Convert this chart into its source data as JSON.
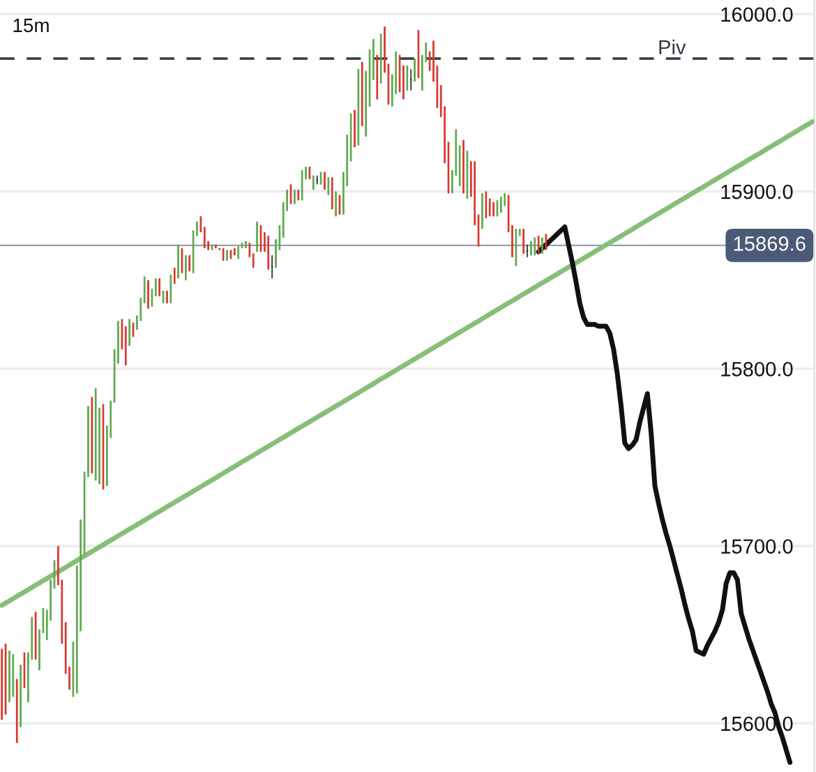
{
  "chart_data": {
    "type": "candlestick",
    "categories": [
      null,
      null,
      null,
      null,
      null,
      null,
      null,
      null,
      null,
      null,
      null,
      null,
      null,
      null,
      null,
      null,
      null,
      null,
      null,
      null,
      null,
      null,
      null,
      null,
      null,
      null,
      null,
      null,
      null,
      null,
      null,
      null,
      null,
      null,
      null,
      null,
      null,
      null,
      null,
      null,
      null,
      null,
      null,
      null,
      null,
      null,
      null,
      null,
      null,
      null,
      null,
      null,
      null,
      null,
      null,
      null,
      null,
      null,
      null,
      null,
      null,
      null,
      null,
      null,
      null,
      null,
      null,
      null,
      null,
      null,
      null,
      null,
      null,
      null,
      null,
      null,
      null,
      null,
      null,
      null,
      null,
      null,
      null,
      null,
      null,
      null,
      null,
      null,
      null,
      null,
      null,
      null,
      null,
      null,
      null,
      null,
      null,
      null,
      null,
      null,
      null,
      null,
      null,
      null,
      null,
      null,
      null,
      null,
      null,
      null,
      null,
      null,
      null,
      null,
      null,
      null,
      null,
      null,
      null,
      null,
      null,
      null,
      null,
      null,
      null,
      null,
      null,
      null,
      null,
      null,
      null,
      null,
      null,
      null,
      null,
      null,
      null,
      null,
      null,
      null,
      null,
      null,
      null,
      null,
      null,
      null,
      null,
      null,
      null,
      null,
      null,
      null,
      null,
      null,
      null,
      null,
      null,
      null,
      null,
      null,
      null,
      null,
      null,
      null,
      null,
      null,
      null,
      null,
      null,
      null,
      null,
      null,
      null,
      null,
      null,
      null,
      null,
      null,
      null,
      null,
      null,
      null,
      null,
      null,
      null,
      null,
      null,
      null,
      null,
      null,
      null,
      null,
      null,
      null,
      null,
      null,
      null,
      null,
      null,
      null,
      null,
      null,
      null,
      null,
      null,
      null,
      null,
      null,
      null,
      null,
      null,
      null,
      null,
      null,
      null,
      null,
      null
    ],
    "ohlc": [
      [
        15642,
        15642,
        15602,
        15602
      ],
      [
        15645,
        15645,
        15605,
        15605
      ],
      [
        15612,
        15641,
        15612,
        15641
      ],
      [
        15615,
        15639,
        15615,
        15639
      ],
      [
        15625,
        15625,
        15589,
        15589
      ],
      [
        15598,
        15633,
        15598,
        15633
      ],
      [
        15640,
        15640,
        15620,
        15620
      ],
      [
        15612,
        15640,
        15612,
        15640
      ],
      [
        15636,
        15660,
        15636,
        15660
      ],
      [
        15663,
        15663,
        15636,
        15636
      ],
      [
        15630,
        15653,
        15630,
        15653
      ],
      [
        15651,
        15665,
        15651,
        15665
      ],
      [
        15647,
        15664,
        15647,
        15664
      ],
      [
        15658,
        15681,
        15658,
        15681
      ],
      [
        15676,
        15692,
        15676,
        15692
      ],
      [
        15700,
        15700,
        15678,
        15678
      ],
      [
        15681,
        15681,
        15645,
        15645
      ],
      [
        15657,
        15657,
        15628,
        15628
      ],
      [
        15632,
        15632,
        15619,
        15619
      ],
      [
        15615,
        15646,
        15615,
        15646
      ],
      [
        15617,
        15689,
        15617,
        15689
      ],
      [
        15652,
        15715,
        15652,
        15715
      ],
      [
        15695,
        15742,
        15695,
        15742
      ],
      [
        15739,
        15779,
        15739,
        15779
      ],
      [
        15784,
        15784,
        15741,
        15741
      ],
      [
        15737,
        15789,
        15737,
        15789
      ],
      [
        15735,
        15778,
        15735,
        15778
      ],
      [
        15780,
        15780,
        15732,
        15732
      ],
      [
        15734,
        15768,
        15734,
        15768
      ],
      [
        15761,
        15782,
        15761,
        15782
      ],
      [
        15781,
        15811,
        15781,
        15811
      ],
      [
        15803,
        15827,
        15803,
        15827
      ],
      [
        15828,
        15828,
        15811,
        15811
      ],
      [
        15824,
        15824,
        15802,
        15802
      ],
      [
        15813,
        15828,
        15813,
        15828
      ],
      [
        15826,
        15826,
        15818,
        15818
      ],
      [
        15822,
        15830,
        15822,
        15830
      ],
      [
        15827,
        15840,
        15827,
        15840
      ],
      [
        15837,
        15852,
        15837,
        15852
      ],
      [
        15850,
        15850,
        15834,
        15834
      ],
      [
        15835,
        15845,
        15835,
        15845
      ],
      [
        15841,
        15851,
        15841,
        15851
      ],
      [
        15851,
        15851,
        15841,
        15841
      ],
      [
        15837,
        15844,
        15837,
        15844
      ],
      [
        15844,
        15844,
        15837,
        15837
      ],
      [
        15837,
        15853,
        15837,
        15853
      ],
      [
        15857,
        15857,
        15848,
        15848
      ],
      [
        15851,
        15870,
        15851,
        15870
      ],
      [
        15868,
        15868,
        15854,
        15854
      ],
      [
        15850,
        15864,
        15850,
        15864
      ],
      [
        15864,
        15864,
        15855,
        15855
      ],
      [
        15854,
        15878,
        15854,
        15878
      ],
      [
        15875,
        15883,
        15875,
        15883
      ],
      [
        15886,
        15886,
        15877,
        15877
      ],
      [
        15880,
        15880,
        15868,
        15868
      ],
      [
        15872,
        15872,
        15867,
        15867
      ],
      [
        15867,
        15870,
        15867,
        15870
      ],
      [
        15870,
        15870,
        15868,
        15868
      ],
      [
        15868,
        15868,
        15867,
        15867
      ],
      [
        15868,
        15868,
        15861,
        15861
      ],
      [
        15861,
        15867,
        15861,
        15867
      ],
      [
        15867,
        15867,
        15862,
        15862
      ],
      [
        15868,
        15868,
        15864,
        15864
      ],
      [
        15862,
        15869,
        15862,
        15869
      ],
      [
        15868,
        15871,
        15868,
        15871
      ],
      [
        15868,
        15872,
        15868,
        15872
      ],
      [
        15871,
        15871,
        15863,
        15863
      ],
      [
        15865,
        15865,
        15857,
        15857
      ],
      [
        15866,
        15883,
        15866,
        15883
      ],
      [
        15881,
        15881,
        15866,
        15866
      ],
      [
        15877,
        15877,
        15866,
        15866
      ],
      [
        15875,
        15875,
        15856,
        15856
      ],
      [
        15857.5,
        15864,
        15851,
        15857.5
      ],
      [
        15857,
        15873,
        15857,
        15873
      ],
      [
        15867,
        15881,
        15867,
        15881
      ],
      [
        15874,
        15894,
        15874,
        15894
      ],
      [
        15889,
        15901,
        15889,
        15901
      ],
      [
        15904,
        15904,
        15893,
        15893
      ],
      [
        15893,
        15901,
        15893,
        15901
      ],
      [
        15901,
        15901,
        15895,
        15895
      ],
      [
        15895,
        15912,
        15895,
        15912
      ],
      [
        15907,
        15914,
        15907,
        15914
      ],
      [
        15914,
        15914,
        15907,
        15907
      ],
      [
        15901,
        15909,
        15901,
        15909
      ],
      [
        15906.5,
        15909,
        15904,
        15906.5
      ],
      [
        15904,
        15911,
        15904,
        15911
      ],
      [
        15911,
        15911,
        15901,
        15901
      ],
      [
        15898,
        15908,
        15898,
        15908
      ],
      [
        15908,
        15908,
        15890,
        15890
      ],
      [
        15886,
        15900,
        15886,
        15900
      ],
      [
        15898,
        15898,
        15887,
        15887
      ],
      [
        15887,
        15911,
        15887,
        15911
      ],
      [
        15903,
        15932,
        15903,
        15932
      ],
      [
        15917,
        15944,
        15917,
        15944
      ],
      [
        15946,
        15946,
        15925,
        15925
      ],
      [
        15926,
        15969,
        15926,
        15969
      ],
      [
        15973,
        15973,
        15937,
        15937
      ],
      [
        15931,
        15968,
        15931,
        15968
      ],
      [
        15948,
        15980,
        15948,
        15980
      ],
      [
        15963,
        15986,
        15963,
        15986
      ],
      [
        15977,
        15977,
        15952,
        15952
      ],
      [
        15961,
        15989,
        15961,
        15989
      ],
      [
        15993,
        15993,
        15967,
        15967
      ],
      [
        15972,
        15972,
        15949,
        15949
      ],
      [
        15948,
        15966,
        15948,
        15966
      ],
      [
        15955,
        15979,
        15955,
        15979
      ],
      [
        15977,
        15977,
        15956,
        15956
      ],
      [
        15971,
        15971,
        15952,
        15952
      ],
      [
        15957,
        15971,
        15957,
        15971
      ],
      [
        15963,
        15969,
        15957,
        15963
      ],
      [
        15962,
        15975,
        15962,
        15975
      ],
      [
        15991,
        15991,
        15964,
        15964
      ],
      [
        15957,
        15977,
        15957,
        15977
      ],
      [
        15973,
        15984,
        15973,
        15984
      ],
      [
        15979,
        15979,
        15968,
        15968
      ],
      [
        15985,
        15985,
        15962,
        15962
      ],
      [
        15971,
        15971,
        15947,
        15947
      ],
      [
        15960,
        15960,
        15942,
        15942
      ],
      [
        15948,
        15948,
        15916,
        15916
      ],
      [
        15928,
        15928,
        15899,
        15899
      ],
      [
        15899,
        15912,
        15899,
        15912
      ],
      [
        15909,
        15935,
        15909,
        15935
      ],
      [
        15903,
        15926,
        15903,
        15926
      ],
      [
        15929,
        15929,
        15899,
        15899
      ],
      [
        15896,
        15923,
        15896,
        15923
      ],
      [
        15917,
        15917,
        15897,
        15897
      ],
      [
        15917,
        15917,
        15881,
        15881
      ],
      [
        15887,
        15887,
        15869,
        15869
      ],
      [
        15879,
        15899,
        15879,
        15899
      ],
      [
        15900,
        15900,
        15885,
        15885
      ],
      [
        15896,
        15896,
        15886,
        15886
      ],
      [
        15894,
        15894,
        15886,
        15886
      ],
      [
        15886,
        15895,
        15886,
        15895
      ],
      [
        15888,
        15897,
        15888,
        15897
      ],
      [
        15892,
        15899,
        15892,
        15899
      ],
      [
        15898,
        15898,
        15877,
        15877
      ],
      [
        15881,
        15881,
        15863,
        15863
      ],
      [
        15858,
        15879,
        15858,
        15879
      ],
      [
        15875,
        15879,
        15875,
        15879
      ],
      [
        15879,
        15879,
        15865,
        15865
      ],
      [
        15866.5,
        15870,
        15863,
        15866.5
      ],
      [
        15864,
        15872,
        15864,
        15872
      ],
      [
        15864,
        15874,
        15864,
        15874
      ],
      [
        15875,
        15875,
        15865,
        15865
      ],
      [
        15865,
        15874,
        15865,
        15874
      ],
      [
        15876,
        15876,
        15867,
        15867
      ],
      null,
      null,
      null,
      null,
      null,
      null,
      null,
      null,
      null,
      null,
      null,
      null,
      null,
      null,
      null,
      null,
      null,
      null,
      null,
      null,
      null,
      null,
      null,
      null,
      null,
      null,
      null,
      null,
      null,
      null,
      null,
      null,
      null,
      null,
      null,
      null,
      null,
      null,
      null,
      null,
      null,
      null,
      null,
      null,
      null,
      null,
      null,
      null,
      null,
      null,
      null,
      null,
      null,
      null,
      null,
      null,
      null,
      null,
      null,
      null,
      null,
      null,
      null,
      null,
      null,
      null,
      null,
      null,
      null,
      null,
      null
    ],
    "colors": [
      "#d9372f",
      "#d9372f",
      "#5fa84f",
      "#5fa84f",
      "#d9372f",
      "#5fa84f",
      "#d9372f",
      "#5fa84f",
      "#5fa84f",
      "#d9372f",
      "#5fa84f",
      "#5fa84f",
      "#5fa84f",
      "#5fa84f",
      "#5fa84f",
      "#d9372f",
      "#d9372f",
      "#d9372f",
      "#d9372f",
      "#5fa84f",
      "#5fa84f",
      "#5fa84f",
      "#5fa84f",
      "#5fa84f",
      "#d9372f",
      "#5fa84f",
      "#5fa84f",
      "#d9372f",
      "#5fa84f",
      "#5fa84f",
      "#5fa84f",
      "#5fa84f",
      "#d9372f",
      "#d9372f",
      "#5fa84f",
      "#d9372f",
      "#5fa84f",
      "#5fa84f",
      "#5fa84f",
      "#d9372f",
      "#5fa84f",
      "#5fa84f",
      "#d9372f",
      "#5fa84f",
      "#d9372f",
      "#5fa84f",
      "#d9372f",
      "#5fa84f",
      "#d9372f",
      "#5fa84f",
      "#d9372f",
      "#5fa84f",
      "#5fa84f",
      "#d9372f",
      "#d9372f",
      "#d9372f",
      "#5fa84f",
      "#d9372f",
      "#d9372f",
      "#d9372f",
      "#5fa84f",
      "#d9372f",
      "#d9372f",
      "#5fa84f",
      "#5fa84f",
      "#5fa84f",
      "#d9372f",
      "#d9372f",
      "#5fa84f",
      "#d9372f",
      "#d9372f",
      "#d9372f",
      "#25272b",
      "#5fa84f",
      "#5fa84f",
      "#5fa84f",
      "#5fa84f",
      "#d9372f",
      "#5fa84f",
      "#d9372f",
      "#5fa84f",
      "#5fa84f",
      "#d9372f",
      "#5fa84f",
      "#25272b",
      "#5fa84f",
      "#d9372f",
      "#5fa84f",
      "#d9372f",
      "#5fa84f",
      "#d9372f",
      "#5fa84f",
      "#5fa84f",
      "#5fa84f",
      "#d9372f",
      "#5fa84f",
      "#d9372f",
      "#5fa84f",
      "#5fa84f",
      "#5fa84f",
      "#d9372f",
      "#5fa84f",
      "#d9372f",
      "#d9372f",
      "#5fa84f",
      "#5fa84f",
      "#d9372f",
      "#d9372f",
      "#5fa84f",
      "#25272b",
      "#5fa84f",
      "#d9372f",
      "#5fa84f",
      "#5fa84f",
      "#d9372f",
      "#d9372f",
      "#d9372f",
      "#d9372f",
      "#d9372f",
      "#d9372f",
      "#5fa84f",
      "#5fa84f",
      "#5fa84f",
      "#d9372f",
      "#5fa84f",
      "#d9372f",
      "#d9372f",
      "#d9372f",
      "#5fa84f",
      "#d9372f",
      "#d9372f",
      "#d9372f",
      "#5fa84f",
      "#5fa84f",
      "#5fa84f",
      "#d9372f",
      "#d9372f",
      "#5fa84f",
      "#5fa84f",
      "#d9372f",
      "#25272b",
      "#5fa84f",
      "#5fa84f",
      "#d9372f",
      "#5fa84f",
      "#d9372f",
      null,
      null,
      null,
      null,
      null,
      null,
      null,
      null,
      null,
      null,
      null,
      null,
      null,
      null,
      null,
      null,
      null,
      null,
      null,
      null,
      null,
      null,
      null,
      null,
      null,
      null,
      null,
      null,
      null,
      null,
      null,
      null,
      null,
      null,
      null,
      null,
      null,
      null,
      null,
      null,
      null,
      null,
      null,
      null,
      null,
      null,
      null,
      null,
      null,
      null,
      null,
      null,
      null,
      null,
      null,
      null,
      null,
      null,
      null,
      null,
      null,
      null,
      null,
      null,
      null,
      null,
      null,
      null,
      null,
      null,
      null
    ],
    "series": [
      {
        "type": "line",
        "color": "#85bf78",
        "values": [
          15666.6,
          15667.9,
          15669.1,
          15670.4,
          15671.7,
          15672.9,
          15674.2,
          15675.4,
          15676.7,
          15678.0,
          15679.2,
          15680.5,
          15681.7,
          15683.0,
          15684.3,
          15685.5,
          15686.8,
          15688.0,
          15689.3,
          15690.6,
          15691.9,
          15693.2,
          15694.4,
          15695.7,
          15697.0,
          15698.2,
          15699.5,
          15700.7,
          15702.0,
          15703.3,
          15704.5,
          15705.8,
          15707.0,
          15708.3,
          15709.6,
          15710.8,
          15712.1,
          15713.3,
          15714.6,
          15715.9,
          15717.1,
          15718.4,
          15719.6,
          15720.9,
          15722.2,
          15723.4,
          15724.7,
          15725.9,
          15727.2,
          15728.5,
          15729.7,
          15731.0,
          15732.2,
          15733.5,
          15734.8,
          15736.0,
          15737.3,
          15738.5,
          15739.8,
          15741.1,
          15742.4,
          15743.7,
          15744.9,
          15746.2,
          15747.5,
          15748.7,
          15750.0,
          15751.2,
          15752.5,
          15753.8,
          15755.0,
          15756.3,
          15757.5,
          15758.8,
          15760.1,
          15761.3,
          15762.6,
          15763.8,
          15765.1,
          15766.4,
          15767.6,
          15768.9,
          15770.1,
          15771.4,
          15772.7,
          15773.9,
          15775.2,
          15776.4,
          15777.7,
          15779.0,
          15780.2,
          15781.5,
          15782.7,
          15784.0,
          15785.3,
          15786.5,
          15787.8,
          15789.0,
          15790.3,
          15791.6,
          15792.9,
          15794.2,
          15795.4,
          15796.7,
          15798.0,
          15799.2,
          15800.5,
          15801.7,
          15803.0,
          15804.3,
          15805.5,
          15806.8,
          15808.0,
          15809.3,
          15810.6,
          15811.8,
          15813.1,
          15814.3,
          15815.6,
          15816.9,
          15818.1,
          15819.4,
          15820.6,
          15821.9,
          15823.2,
          15824.4,
          15825.7,
          15826.9,
          15828.2,
          15829.5,
          15830.8,
          15832.1,
          15833.3,
          15834.6,
          15835.9,
          15837.1,
          15838.4,
          15839.6,
          15840.9,
          15842.2,
          15843.4,
          15844.7,
          15845.9,
          15847.2,
          15848.5,
          15849.7,
          15851.0,
          15852.2,
          15853.5,
          15854.8,
          15856.0,
          15857.3,
          15858.5,
          15859.8,
          15861.1,
          15862.3,
          15863.6,
          15864.8,
          15866.1,
          15867.4,
          15868.6,
          15869.9,
          15871.1,
          15872.4,
          15873.7,
          15874.9,
          15876.2,
          15877.4,
          15878.7,
          15880.0,
          15881.3,
          15882.6,
          15883.8,
          15885.1,
          15886.4,
          15887.6,
          15888.9,
          15890.1,
          15891.4,
          15892.7,
          15893.9,
          15895.2,
          15896.4,
          15897.7,
          15899.0,
          15900.2,
          15901.5,
          15902.7,
          15904.0,
          15905.3,
          15906.5,
          15907.8,
          15909.0,
          15910.3,
          15911.6,
          15912.8,
          15914.1,
          15915.3,
          15916.6,
          15917.9,
          15919.1,
          15920.4,
          15921.6,
          15922.9,
          15924.2,
          15925.4,
          15926.7,
          15927.9,
          15929.2,
          15930.5,
          15931.8,
          15933.1,
          15934.3,
          15935.6,
          15936.9,
          15938.1,
          15939.4
        ]
      },
      {
        "type": "line",
        "color": "#111111",
        "values": [
          null,
          null,
          null,
          null,
          null,
          null,
          null,
          null,
          null,
          null,
          null,
          null,
          null,
          null,
          null,
          null,
          null,
          null,
          null,
          null,
          null,
          null,
          null,
          null,
          null,
          null,
          null,
          null,
          null,
          null,
          null,
          null,
          null,
          null,
          null,
          null,
          null,
          null,
          null,
          null,
          null,
          null,
          null,
          null,
          null,
          null,
          null,
          null,
          null,
          null,
          null,
          null,
          null,
          null,
          null,
          null,
          null,
          null,
          null,
          null,
          null,
          null,
          null,
          null,
          null,
          null,
          null,
          null,
          null,
          null,
          null,
          null,
          null,
          null,
          null,
          null,
          null,
          null,
          null,
          null,
          null,
          null,
          null,
          null,
          null,
          null,
          null,
          null,
          null,
          null,
          null,
          null,
          null,
          null,
          null,
          null,
          null,
          null,
          null,
          null,
          null,
          null,
          null,
          null,
          null,
          null,
          null,
          null,
          null,
          null,
          null,
          null,
          null,
          null,
          null,
          null,
          null,
          null,
          null,
          null,
          null,
          null,
          null,
          null,
          null,
          null,
          null,
          null,
          null,
          null,
          null,
          null,
          null,
          null,
          null,
          null,
          null,
          null,
          null,
          null,
          null,
          null,
          null,
          15866,
          15868,
          15870,
          15872,
          15874,
          15876,
          15878,
          15880,
          15870,
          15860,
          15849,
          15837,
          15829,
          15825,
          15825,
          15825,
          15824,
          15824,
          15824,
          15820,
          15811,
          15797,
          15779,
          15758,
          15755,
          15757,
          15760,
          15770,
          15778,
          15786,
          15764,
          15734,
          15724,
          15715,
          15707,
          15700,
          15692,
          15684,
          15676,
          15667,
          15659,
          15652,
          15641,
          15640,
          15639,
          15644,
          15648,
          15652,
          15657,
          15664,
          15679,
          15685,
          15685,
          15681,
          15662,
          15655,
          15648,
          15642,
          15636,
          15630,
          15624,
          15618,
          15611,
          15606,
          15598,
          15592,
          15585,
          15578,
          null,
          null,
          null,
          null,
          null,
          null
        ]
      }
    ],
    "ref_lines": [
      {
        "axis": "y",
        "value": 15975,
        "label": "Piv",
        "color": "#333842",
        "line_style": "dashed"
      },
      {
        "axis": "y",
        "value": 15869.6,
        "label": "15869.6",
        "color": "#9aa0b0",
        "line_style": "solid"
      }
    ],
    "annotations": [
      "15m"
    ],
    "ylim": [
      15572.6,
      16008
    ],
    "yticks": [
      {
        "value": 15600,
        "label": "15600.0"
      },
      {
        "value": 15700,
        "label": "15700.0"
      },
      {
        "value": 15800,
        "label": "15800.0"
      },
      {
        "value": 15900,
        "label": "15900.0"
      },
      {
        "value": 16000,
        "label": "16000.0"
      }
    ],
    "grid": "y",
    "tick_labels": "y"
  }
}
